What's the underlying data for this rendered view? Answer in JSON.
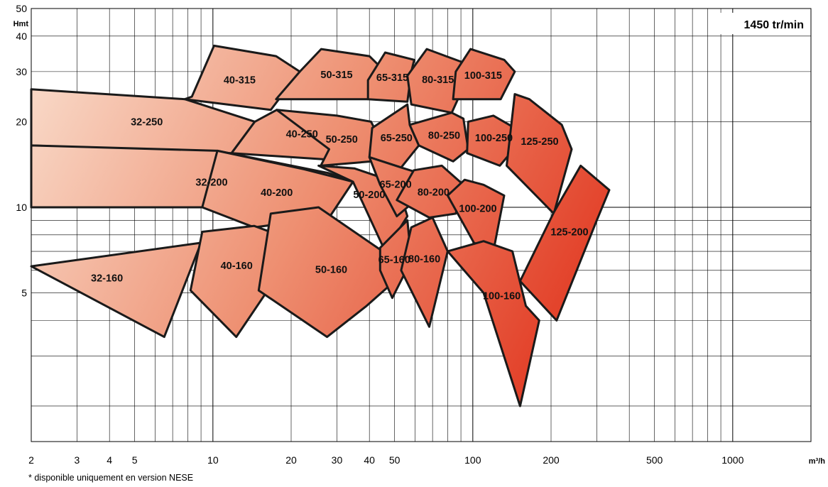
{
  "chart_data": {
    "type": "area",
    "title": "1450 tr/min",
    "xlabel": "m³/h",
    "ylabel": "Hmt",
    "x_scale": "log",
    "y_scale": "log",
    "xlim": [
      2,
      2000
    ],
    "ylim": [
      1.5,
      50
    ],
    "x_ticks": [
      2,
      3,
      4,
      5,
      10,
      20,
      30,
      40,
      50,
      100,
      200,
      500,
      1000
    ],
    "y_ticks": [
      5,
      10,
      20,
      30,
      40,
      50
    ],
    "grid": true,
    "series": [
      {
        "name": "32-250",
        "q": [
          2,
          7.8,
          14.5,
          11.8,
          2
        ],
        "h": [
          26,
          24,
          20,
          15.5,
          16.5
        ]
      },
      {
        "name": "32-200",
        "q": [
          2,
          10.4,
          27.8,
          34.6,
          25.3,
          9.1,
          2
        ],
        "h": [
          16.5,
          15.8,
          13.2,
          12.3,
          9.8,
          10,
          10
        ]
      },
      {
        "name": "32-160",
        "q": [
          2,
          9,
          6.5,
          2
        ],
        "h": [
          6.2,
          7.5,
          3.5,
          6.2
        ]
      },
      {
        "name": "40-315",
        "q": [
          8.3,
          10.1,
          17.5,
          21.6,
          16.7,
          7.8
        ],
        "h": [
          24.5,
          37,
          34,
          30,
          22,
          24
        ]
      },
      {
        "name": "40-250",
        "q": [
          14.5,
          17.6,
          28,
          38.5,
          35,
          11.8
        ],
        "h": [
          20,
          22,
          20,
          18,
          14.5,
          15.5
        ]
      },
      {
        "name": "40-200",
        "q": [
          10.4,
          22.5,
          34.6,
          28,
          14.4,
          9.1
        ],
        "h": [
          15.8,
          13.6,
          12.3,
          9.2,
          8.5,
          10
        ]
      },
      {
        "name": "40-160",
        "q": [
          9.1,
          14.4,
          21.6,
          12.3,
          8.2
        ],
        "h": [
          8.2,
          8.6,
          7.5,
          3.5,
          5.1
        ]
      },
      {
        "name": "50-315",
        "q": [
          21.6,
          26.1,
          40,
          46,
          39.5,
          17.5
        ],
        "h": [
          30,
          36,
          34,
          30,
          24,
          24
        ]
      },
      {
        "name": "50-250",
        "q": [
          17.6,
          30,
          40.6,
          46,
          41,
          26,
          28
        ],
        "h": [
          22,
          21,
          20,
          16,
          14.5,
          14,
          16
        ]
      },
      {
        "name": "50-200",
        "q": [
          25.5,
          35,
          51,
          56,
          46,
          34.6
        ],
        "h": [
          14,
          13.7,
          12.2,
          9.3,
          7,
          12.3
        ]
      },
      {
        "name": "50-160",
        "q": [
          16.7,
          25.5,
          45,
          50,
          39,
          27.5,
          15
        ],
        "h": [
          9.5,
          10,
          7,
          5.5,
          4.5,
          3.5,
          5.1
        ]
      },
      {
        "name": "65-315",
        "q": [
          39.5,
          46,
          59.5,
          58,
          56,
          39.5
        ],
        "h": [
          28,
          35,
          33,
          30,
          23.5,
          24
        ]
      },
      {
        "name": "65-250",
        "q": [
          41,
          56,
          57.2,
          62,
          53,
          40
        ],
        "h": [
          19,
          23,
          19.5,
          16.5,
          13.8,
          15
        ]
      },
      {
        "name": "65-200",
        "q": [
          40,
          53,
          62,
          56,
          51,
          44
        ],
        "h": [
          15,
          13.8,
          13.2,
          10,
          9.3,
          12
        ]
      },
      {
        "name": "65-160",
        "q": [
          44,
          56,
          58,
          49,
          44
        ],
        "h": [
          7.2,
          9,
          6.5,
          4.8,
          6
        ]
      },
      {
        "name": "80-315",
        "q": [
          56,
          66.5,
          90,
          97,
          83,
          58
        ],
        "h": [
          29,
          36,
          32.5,
          29.5,
          21.5,
          23
        ]
      },
      {
        "name": "80-250",
        "q": [
          57.2,
          83,
          92,
          96,
          84,
          62
        ],
        "h": [
          19.5,
          21.5,
          20.5,
          16,
          14.5,
          16.5
        ]
      },
      {
        "name": "80-200",
        "q": [
          59.3,
          76,
          92,
          86,
          68,
          51
        ],
        "h": [
          13.5,
          14,
          12,
          9.5,
          9.2,
          10.6
        ]
      },
      {
        "name": "80-160",
        "q": [
          58,
          70,
          80,
          68,
          53
        ],
        "h": [
          8.5,
          9.2,
          7,
          3.8,
          6
        ]
      },
      {
        "name": "100-315",
        "q": [
          86,
          98,
          132,
          145,
          128,
          84
        ],
        "h": [
          30,
          36,
          33,
          30,
          24,
          24
        ]
      },
      {
        "name": "100-250",
        "q": [
          96,
          120,
          145,
          152,
          127,
          95
        ],
        "h": [
          20,
          21,
          19,
          17,
          14,
          15.5
        ]
      },
      {
        "name": "100-200",
        "q": [
          93,
          110,
          132,
          120,
          101,
          80
        ],
        "h": [
          12.5,
          12,
          11,
          7,
          7.5,
          11
        ]
      },
      {
        "name": "100-160",
        "q": [
          80,
          110,
          142,
          160,
          180,
          152,
          110
        ],
        "h": [
          7,
          7.6,
          7,
          4.5,
          4,
          2,
          5
        ]
      },
      {
        "name": "125-250",
        "q": [
          145,
          165,
          220,
          240,
          205,
          135
        ],
        "h": [
          25,
          24,
          19.5,
          16,
          9.5,
          14
        ]
      },
      {
        "name": "125-200",
        "q": [
          205,
          260,
          335,
          300,
          210,
          152
        ],
        "h": [
          9.6,
          14,
          11.5,
          9,
          4,
          5.5
        ]
      }
    ],
    "annotations": [
      "* disponible uniquement en version NESE"
    ]
  },
  "colors": {
    "low": "#f8d8c8",
    "high": "#e03a22",
    "outline": "#1a1a1a",
    "grid": "#000000"
  },
  "footnote": "* disponible uniquement en version NESE",
  "badge": "1450 tr/min"
}
